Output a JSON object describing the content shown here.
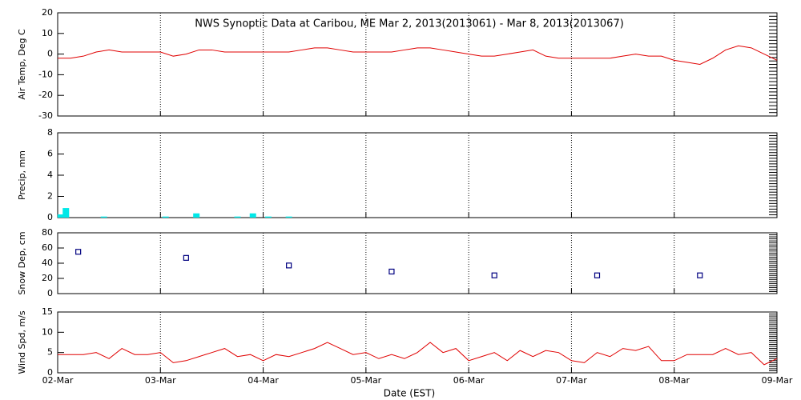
{
  "chart_data": [
    {
      "type": "line",
      "title": "NWS Synoptic Data at Caribou, ME   Mar  2, 2013(2013061) - Mar  8, 2013(2013067)",
      "y_label": "Air Temp, Deg C",
      "color": "#e00000",
      "grid": true,
      "xlim": [
        2,
        9
      ],
      "xticks": [
        2,
        3,
        4,
        5,
        6,
        7,
        8,
        9
      ],
      "ylim": [
        -30,
        20
      ],
      "yticks": [
        -30,
        -20,
        -10,
        0,
        10,
        20
      ],
      "x": [
        2.0,
        2.125,
        2.25,
        2.375,
        2.5,
        2.625,
        2.75,
        2.875,
        3.0,
        3.125,
        3.25,
        3.375,
        3.5,
        3.625,
        3.75,
        3.875,
        4.0,
        4.125,
        4.25,
        4.375,
        4.5,
        4.625,
        4.75,
        4.875,
        5.0,
        5.125,
        5.25,
        5.375,
        5.5,
        5.625,
        5.75,
        5.875,
        6.0,
        6.125,
        6.25,
        6.375,
        6.5,
        6.625,
        6.75,
        6.875,
        7.0,
        7.125,
        7.25,
        7.375,
        7.5,
        7.625,
        7.75,
        7.875,
        8.0,
        8.125,
        8.25,
        8.375,
        8.5,
        8.625,
        8.75,
        8.875,
        9.0
      ],
      "values": [
        -2,
        -2,
        -1,
        1,
        2,
        1,
        1,
        1,
        1,
        -1,
        0,
        2,
        2,
        1,
        1,
        1,
        1,
        1,
        1,
        2,
        3,
        3,
        2,
        1,
        1,
        1,
        1,
        2,
        3,
        3,
        2,
        1,
        0,
        -1,
        -1,
        0,
        1,
        2,
        -1,
        -2,
        -2,
        -2,
        -2,
        -2,
        -1,
        0,
        -1,
        -1,
        -3,
        -4,
        -5,
        -2,
        2,
        4,
        3,
        0,
        -3
      ]
    },
    {
      "type": "bar",
      "y_label": "Precip, mm",
      "color": "#00e8e8",
      "grid": true,
      "xlim": [
        2,
        9
      ],
      "xticks": [
        2,
        3,
        4,
        5,
        6,
        7,
        8,
        9
      ],
      "ylim": [
        0,
        8
      ],
      "yticks": [
        0,
        2,
        4,
        6,
        8
      ],
      "x": [
        2.03,
        2.08,
        2.45,
        3.05,
        3.35,
        3.75,
        3.9,
        4.05,
        4.25
      ],
      "values": [
        0.3,
        0.9,
        0.1,
        0.1,
        0.4,
        0.1,
        0.4,
        0.1,
        0.1
      ]
    },
    {
      "type": "scatter",
      "y_label": "Snow Dep, cm",
      "color": "#000080",
      "grid": true,
      "xlim": [
        2,
        9
      ],
      "xticks": [
        2,
        3,
        4,
        5,
        6,
        7,
        8,
        9
      ],
      "ylim": [
        0,
        80
      ],
      "yticks": [
        0,
        20,
        40,
        60,
        80
      ],
      "x": [
        2.2,
        3.25,
        4.25,
        5.25,
        6.25,
        7.25,
        8.25
      ],
      "values": [
        55,
        47,
        37,
        29,
        24,
        24,
        24
      ]
    },
    {
      "type": "line",
      "y_label": "Wind Spd, m/s",
      "x_label": "Date (EST)",
      "color": "#e00000",
      "grid": true,
      "xlim": [
        2,
        9
      ],
      "xticks": [
        {
          "value": 2,
          "label": "02-Mar"
        },
        {
          "value": 3,
          "label": "03-Mar"
        },
        {
          "value": 4,
          "label": "04-Mar"
        },
        {
          "value": 5,
          "label": "05-Mar"
        },
        {
          "value": 6,
          "label": "06-Mar"
        },
        {
          "value": 7,
          "label": "07-Mar"
        },
        {
          "value": 8,
          "label": "08-Mar"
        },
        {
          "value": 9,
          "label": "09-Mar"
        }
      ],
      "ylim": [
        0,
        15
      ],
      "yticks": [
        0,
        5,
        10,
        15
      ],
      "x": [
        2.0,
        2.125,
        2.25,
        2.375,
        2.5,
        2.625,
        2.75,
        2.875,
        3.0,
        3.125,
        3.25,
        3.375,
        3.5,
        3.625,
        3.75,
        3.875,
        4.0,
        4.125,
        4.25,
        4.375,
        4.5,
        4.625,
        4.75,
        4.875,
        5.0,
        5.125,
        5.25,
        5.375,
        5.5,
        5.625,
        5.75,
        5.875,
        6.0,
        6.125,
        6.25,
        6.375,
        6.5,
        6.625,
        6.75,
        6.875,
        7.0,
        7.125,
        7.25,
        7.375,
        7.5,
        7.625,
        7.75,
        7.875,
        8.0,
        8.125,
        8.25,
        8.375,
        8.5,
        8.625,
        8.75,
        8.875,
        9.0
      ],
      "values": [
        4.5,
        4.5,
        4.5,
        5,
        3.5,
        6,
        4.5,
        4.5,
        5,
        2.5,
        3,
        4,
        5,
        6,
        4,
        4.5,
        3,
        4.5,
        4,
        5,
        6,
        7.5,
        6,
        4.5,
        5,
        3.5,
        4.5,
        3.5,
        5,
        7.5,
        5,
        6,
        3,
        4,
        5,
        3,
        5.5,
        4,
        5.5,
        5,
        3,
        2.5,
        5,
        4,
        6,
        5.5,
        6.5,
        3,
        3,
        4.5,
        4.5,
        4.5,
        6,
        4.5,
        5,
        2,
        3.5
      ]
    }
  ]
}
